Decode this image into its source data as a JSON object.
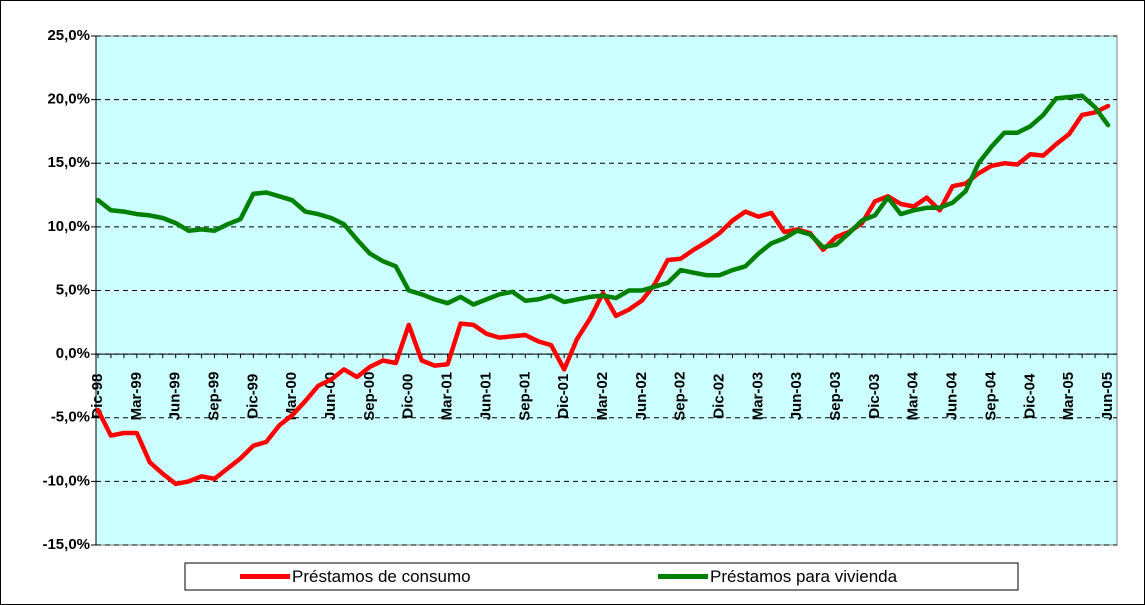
{
  "chart_data": {
    "type": "line",
    "categories": [
      "Dic-98",
      null,
      null,
      "Mar-99",
      null,
      null,
      "Jun-99",
      null,
      null,
      "Sep-99",
      null,
      null,
      "Dic-99",
      null,
      null,
      "Mar-00",
      null,
      null,
      "Jun-00",
      null,
      null,
      "Sep-00",
      null,
      null,
      "Dic-00",
      null,
      null,
      "Mar-01",
      null,
      null,
      "Jun-01",
      null,
      null,
      "Sep-01",
      null,
      null,
      "Dic-01",
      null,
      null,
      "Mar-02",
      null,
      null,
      "Jun-02",
      null,
      null,
      "Sep-02",
      null,
      null,
      "Dic-02",
      null,
      null,
      "Mar-03",
      null,
      null,
      "Jun-03",
      null,
      null,
      "Sep-03",
      null,
      null,
      "Dic-03",
      null,
      null,
      "Mar-04",
      null,
      null,
      "Jun-04",
      null,
      null,
      "Sep-04",
      null,
      null,
      "Dic-04",
      null,
      null,
      "Mar-05",
      null,
      null,
      "Jun-05"
    ],
    "series": [
      {
        "name": "Préstamos de consumo",
        "color": "#ff0000",
        "values": [
          -4.4,
          -6.4,
          -6.2,
          -6.2,
          -8.5,
          -9.4,
          -10.2,
          -10.0,
          -9.6,
          -9.8,
          -9.0,
          -8.2,
          -7.2,
          -6.9,
          -5.6,
          -4.8,
          -3.7,
          -2.5,
          -2.0,
          -1.2,
          -1.8,
          -1.0,
          -0.5,
          -0.7,
          2.3,
          -0.5,
          -0.9,
          -0.8,
          2.4,
          2.3,
          1.6,
          1.3,
          1.4,
          1.5,
          1.0,
          0.7,
          -1.2,
          1.2,
          2.8,
          4.8,
          3.0,
          3.5,
          4.2,
          5.5,
          7.4,
          7.5,
          8.2,
          8.8,
          9.5,
          10.5,
          11.2,
          10.8,
          11.1,
          9.6,
          9.8,
          9.5,
          8.2,
          9.2,
          9.6,
          10.3,
          12.0,
          12.4,
          11.8,
          11.6,
          12.3,
          11.3,
          13.2,
          13.4,
          14.2,
          14.8,
          15.0,
          14.9,
          15.7,
          15.6,
          16.5,
          17.3,
          18.8,
          19.0,
          19.5
        ]
      },
      {
        "name": "Préstamos para vivienda",
        "color": "#008000",
        "values": [
          12.1,
          11.3,
          11.2,
          11.0,
          10.9,
          10.7,
          10.3,
          9.7,
          9.8,
          9.7,
          10.2,
          10.6,
          12.6,
          12.7,
          12.4,
          12.1,
          11.2,
          11.0,
          10.7,
          10.2,
          9.0,
          7.9,
          7.3,
          6.9,
          5.0,
          4.7,
          4.3,
          4.0,
          4.5,
          3.9,
          4.3,
          4.7,
          4.9,
          4.2,
          4.3,
          4.6,
          4.1,
          4.3,
          4.5,
          4.6,
          4.4,
          5.0,
          5.0,
          5.3,
          5.6,
          6.6,
          6.4,
          6.2,
          6.2,
          6.6,
          6.9,
          7.9,
          8.7,
          9.1,
          9.7,
          9.4,
          8.4,
          8.6,
          9.5,
          10.5,
          10.9,
          12.3,
          11.0,
          11.3,
          11.5,
          11.5,
          11.9,
          12.8,
          15.0,
          16.3,
          17.4,
          17.4,
          17.9,
          18.8,
          20.1,
          20.2,
          20.3,
          19.4,
          18.0
        ]
      }
    ],
    "ylim": [
      -15,
      25
    ],
    "yticks": [
      {
        "value": -15,
        "label": "-15,0%"
      },
      {
        "value": -10,
        "label": "-10,0%"
      },
      {
        "value": -5,
        "label": "-5,0%"
      },
      {
        "value": 0,
        "label": "0,0%"
      },
      {
        "value": 5,
        "label": "5,0%"
      },
      {
        "value": 10,
        "label": "10,0%"
      },
      {
        "value": 15,
        "label": "15,0%"
      },
      {
        "value": 20,
        "label": "20,0%"
      },
      {
        "value": 25,
        "label": "25,0%"
      }
    ],
    "grid": true,
    "legend": "bottom",
    "background": "#ccffff"
  }
}
